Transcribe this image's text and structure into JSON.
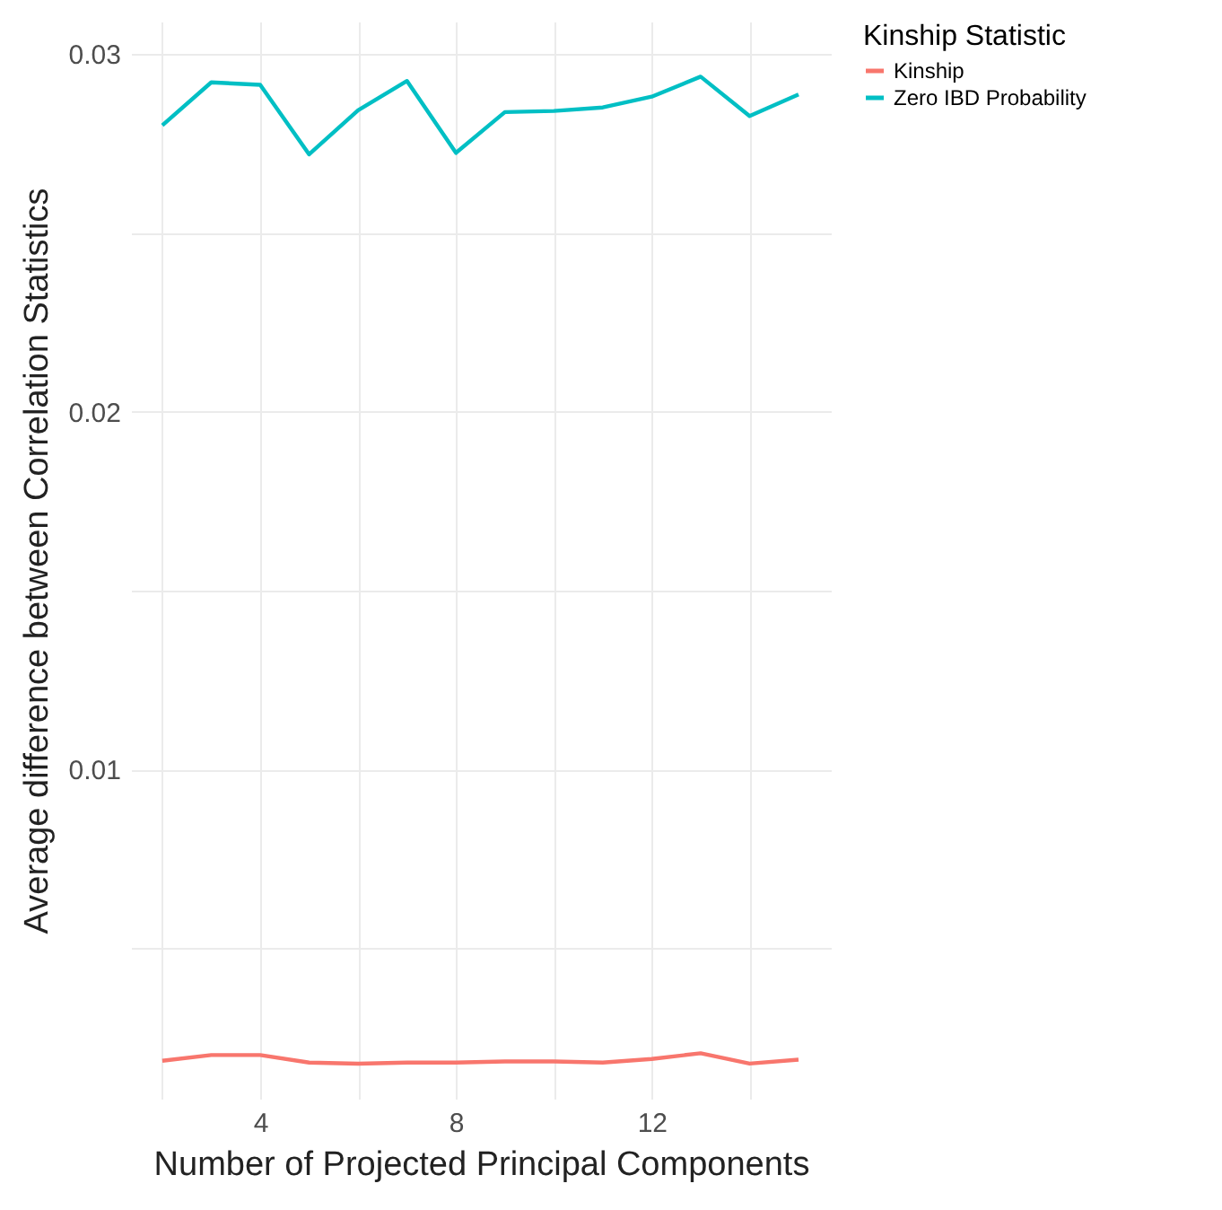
{
  "chart_data": {
    "type": "line",
    "xlabel": "Number of Projected Principal Components",
    "ylabel": "Average difference between Correlation Statistics",
    "legend_title": "Kinship Statistic",
    "x": [
      2,
      3,
      4,
      5,
      6,
      7,
      8,
      9,
      10,
      11,
      12,
      13,
      14,
      15
    ],
    "series": [
      {
        "name": "Kinship",
        "color": "#f8766d",
        "values": [
          0.00186,
          0.00202,
          0.00202,
          0.00181,
          0.00178,
          0.00181,
          0.00181,
          0.00184,
          0.00184,
          0.00181,
          0.00191,
          0.00207,
          0.00178,
          0.00189
        ]
      },
      {
        "name": "Zero IBD Probability",
        "color": "#00bfc4",
        "values": [
          0.028,
          0.0292,
          0.02913,
          0.02719,
          0.02842,
          0.02924,
          0.02723,
          0.02837,
          0.0284,
          0.0285,
          0.0288,
          0.02936,
          0.02826,
          0.02886
        ]
      }
    ],
    "xlim": [
      1.36,
      15.66
    ],
    "ylim": [
      0.0008,
      0.0309
    ],
    "xticks": [
      {
        "value": 2,
        "label": null
      },
      4,
      {
        "value": 6,
        "label": null
      },
      8,
      {
        "value": 10,
        "label": null
      },
      12,
      {
        "value": 14,
        "label": null
      }
    ],
    "yticks": [
      {
        "value": 0.005,
        "label": null
      },
      {
        "value": 0.01,
        "label": "0.01"
      },
      {
        "value": 0.015,
        "label": null
      },
      {
        "value": 0.02,
        "label": "0.02"
      },
      {
        "value": 0.025,
        "label": null
      },
      {
        "value": 0.03,
        "label": "0.03"
      }
    ],
    "grid": true,
    "legend": "right",
    "marker": "none",
    "line_style": "solid"
  }
}
